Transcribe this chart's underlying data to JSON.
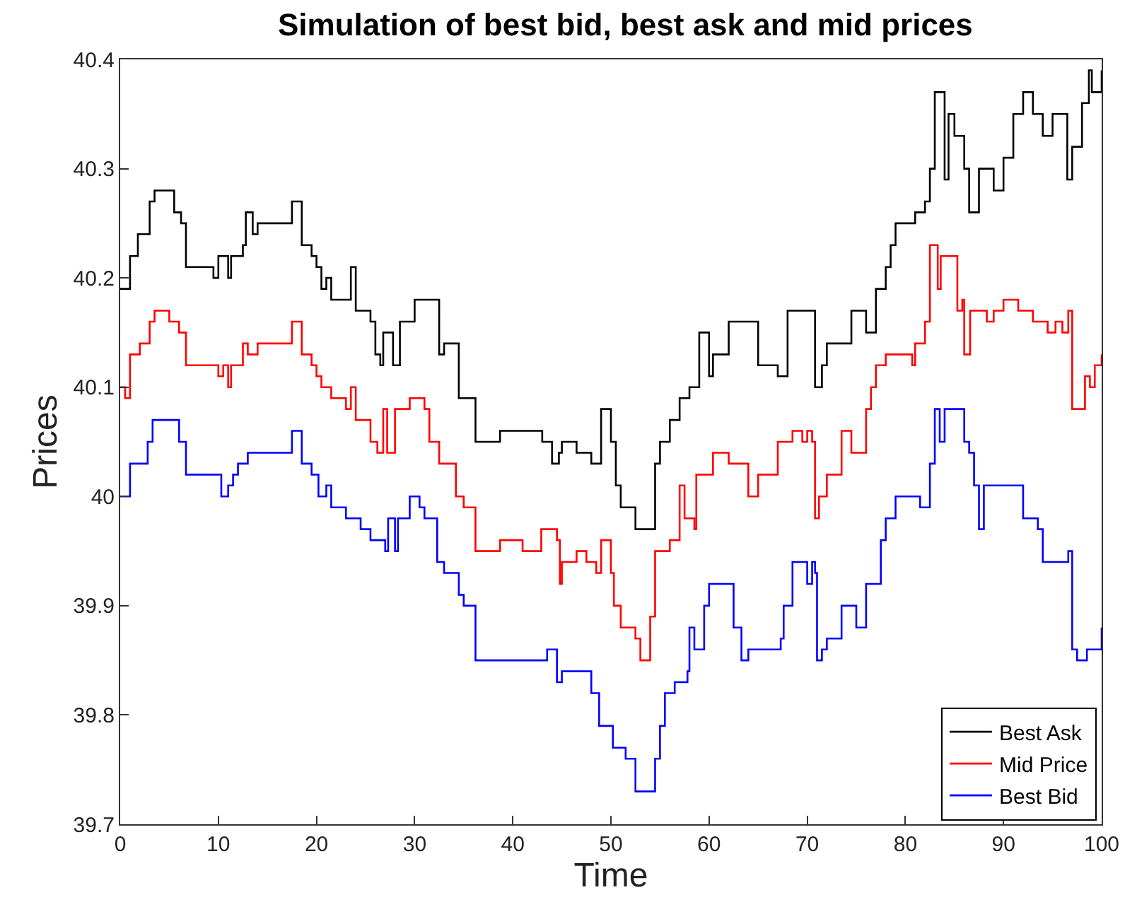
{
  "chart_data": {
    "type": "step",
    "title": "Simulation of best bid, best ask and mid prices",
    "xlabel": "Time",
    "ylabel": "Prices",
    "xlim": [
      0,
      100
    ],
    "xticks": [
      0,
      10,
      20,
      30,
      40,
      50,
      60,
      70,
      80,
      90,
      100
    ],
    "ylim": [
      39.7,
      40.4
    ],
    "yticks": [
      39.7,
      39.8,
      39.9,
      40,
      40.1,
      40.2,
      40.3,
      40.4
    ],
    "legend": "bottom right",
    "series": [
      {
        "name": "Best Ask",
        "color": "#000000",
        "x": [
          0,
          1,
          1.8,
          3,
          3.5,
          5.5,
          6.2,
          6.7,
          9.5,
          10,
          11,
          11.3,
          12.5,
          12.8,
          13.5,
          14,
          17.5,
          18.5,
          19.5,
          20,
          20.5,
          21,
          21.5,
          23.5,
          24,
          25.5,
          26,
          26.5,
          26.8,
          27.8,
          28.5,
          30,
          32,
          32.5,
          33,
          34.5,
          36.2,
          38.7,
          41,
          43,
          44,
          44.7,
          45,
          46.5,
          48,
          49,
          50,
          50.5,
          51,
          52.5,
          54.5,
          55,
          56,
          57,
          58,
          59,
          60,
          60.4,
          61,
          62,
          65,
          67,
          67.5,
          68,
          70.8,
          71.5,
          72,
          74.5,
          76,
          77,
          78,
          78.5,
          79,
          81,
          82,
          82.5,
          83,
          84,
          84.4,
          85,
          86,
          86.5,
          87.5,
          89,
          90,
          91,
          92,
          93,
          94,
          95,
          96.5,
          97,
          98,
          98.7,
          99,
          100
        ],
        "values": [
          40.19,
          40.22,
          40.24,
          40.27,
          40.28,
          40.26,
          40.25,
          40.21,
          40.2,
          40.22,
          40.2,
          40.22,
          40.23,
          40.26,
          40.24,
          40.25,
          40.27,
          40.23,
          40.22,
          40.21,
          40.19,
          40.2,
          40.18,
          40.21,
          40.17,
          40.16,
          40.13,
          40.12,
          40.15,
          40.12,
          40.16,
          40.18,
          40.18,
          40.13,
          40.14,
          40.09,
          40.05,
          40.06,
          40.06,
          40.05,
          40.03,
          40.04,
          40.05,
          40.04,
          40.03,
          40.08,
          40.05,
          40.01,
          39.99,
          39.97,
          40.03,
          40.05,
          40.07,
          40.09,
          40.1,
          40.15,
          40.11,
          40.13,
          40.13,
          40.16,
          40.12,
          40.11,
          40.11,
          40.17,
          40.1,
          40.12,
          40.14,
          40.17,
          40.15,
          40.19,
          40.21,
          40.23,
          40.25,
          40.26,
          40.27,
          40.3,
          40.37,
          40.29,
          40.35,
          40.33,
          40.3,
          40.26,
          40.3,
          40.28,
          40.31,
          40.35,
          40.37,
          40.35,
          40.33,
          40.35,
          40.29,
          40.32,
          40.36,
          40.39,
          40.37,
          40.39
        ]
      },
      {
        "name": "Mid Price",
        "color": "#ff0000",
        "x": [
          0,
          0.5,
          1,
          2,
          3,
          3.5,
          5,
          6,
          6.7,
          9.5,
          10,
          10.5,
          11,
          11.3,
          12.5,
          13,
          14,
          17.5,
          18.5,
          19.5,
          20,
          20.5,
          21.5,
          23,
          23.5,
          24,
          25.5,
          26.2,
          26.8,
          27.2,
          28,
          29.5,
          31,
          31.5,
          32.5,
          34.2,
          35,
          36.2,
          38.7,
          41,
          42.9,
          44.5,
          44.8,
          45,
          46.5,
          47.5,
          48.5,
          49,
          50,
          50.3,
          51,
          52.5,
          53,
          54,
          54.5,
          55,
          56,
          57,
          57.5,
          58.5,
          58.7,
          60.4,
          62,
          64,
          65,
          67,
          67.5,
          68.5,
          69.5,
          70,
          70.5,
          70.8,
          71.2,
          72,
          73.5,
          74.5,
          76,
          76.5,
          77,
          78,
          80.7,
          81,
          82,
          82.5,
          83.3,
          83.6,
          85,
          85.3,
          85.8,
          86,
          86.6,
          88.3,
          89,
          90,
          91.5,
          93,
          94.5,
          95.3,
          96,
          96.6,
          97,
          98.3,
          98.8,
          99.3,
          100
        ],
        "values": [
          40.1,
          40.09,
          40.13,
          40.14,
          40.16,
          40.17,
          40.16,
          40.15,
          40.12,
          40.12,
          40.11,
          40.12,
          40.1,
          40.12,
          40.14,
          40.13,
          40.14,
          40.16,
          40.13,
          40.12,
          40.11,
          40.1,
          40.09,
          40.08,
          40.1,
          40.07,
          40.05,
          40.04,
          40.08,
          40.04,
          40.08,
          40.09,
          40.08,
          40.05,
          40.03,
          40,
          39.99,
          39.95,
          39.96,
          39.95,
          39.97,
          39.96,
          39.92,
          39.94,
          39.95,
          39.94,
          39.93,
          39.96,
          39.93,
          39.9,
          39.88,
          39.87,
          39.85,
          39.89,
          39.95,
          39.95,
          39.96,
          40.01,
          39.98,
          39.97,
          40.02,
          40.04,
          40.03,
          40,
          40.02,
          40.05,
          40.05,
          40.06,
          40.05,
          40.06,
          40.05,
          39.98,
          40,
          40.02,
          40.06,
          40.04,
          40.08,
          40.1,
          40.12,
          40.13,
          40.12,
          40.14,
          40.16,
          40.23,
          40.19,
          40.22,
          40.22,
          40.17,
          40.18,
          40.13,
          40.17,
          40.16,
          40.17,
          40.18,
          40.17,
          40.16,
          40.15,
          40.16,
          40.15,
          40.17,
          40.08,
          40.11,
          40.1,
          40.12,
          40.13
        ]
      },
      {
        "name": "Best Bid",
        "color": "#0000ff",
        "x": [
          0,
          1,
          2.8,
          3.3,
          5.5,
          6,
          6.7,
          10.3,
          11,
          11.5,
          12,
          13,
          17.5,
          18.5,
          19.5,
          20.2,
          21,
          21.5,
          23,
          24.5,
          25.5,
          27,
          27.3,
          28,
          28.3,
          29.5,
          30.5,
          31,
          32.3,
          33,
          34.5,
          35,
          36.2,
          40.5,
          43.5,
          44.5,
          45,
          47.5,
          48,
          48.8,
          50.2,
          51.5,
          52.5,
          54.5,
          55,
          55.5,
          56.5,
          57.8,
          58,
          58.5,
          59.5,
          60,
          62.5,
          63.3,
          64,
          67.3,
          67.6,
          68.5,
          70,
          70.5,
          70.8,
          71,
          71.5,
          72,
          73.5,
          75,
          76,
          77.5,
          78,
          79,
          81.5,
          82.5,
          83,
          83.5,
          84,
          86,
          86.5,
          87,
          87.5,
          88,
          92,
          93.5,
          94,
          96.6,
          97,
          97.5,
          98.5,
          100
        ],
        "values": [
          40,
          40.03,
          40.05,
          40.07,
          40.07,
          40.05,
          40.02,
          40,
          40.01,
          40.02,
          40.03,
          40.04,
          40.06,
          40.03,
          40.02,
          40,
          40.01,
          39.99,
          39.98,
          39.97,
          39.96,
          39.95,
          39.98,
          39.95,
          39.98,
          40,
          39.99,
          39.98,
          39.94,
          39.93,
          39.91,
          39.9,
          39.85,
          39.85,
          39.86,
          39.83,
          39.84,
          39.84,
          39.82,
          39.79,
          39.77,
          39.76,
          39.73,
          39.76,
          39.79,
          39.82,
          39.83,
          39.84,
          39.88,
          39.86,
          39.9,
          39.92,
          39.88,
          39.85,
          39.86,
          39.87,
          39.9,
          39.94,
          39.92,
          39.94,
          39.93,
          39.85,
          39.86,
          39.87,
          39.9,
          39.88,
          39.92,
          39.96,
          39.98,
          40,
          39.99,
          40.03,
          40.08,
          40.05,
          40.08,
          40.05,
          40.04,
          40.01,
          39.97,
          40.01,
          39.98,
          39.97,
          39.94,
          39.95,
          39.86,
          39.85,
          39.86,
          39.88
        ]
      }
    ]
  }
}
